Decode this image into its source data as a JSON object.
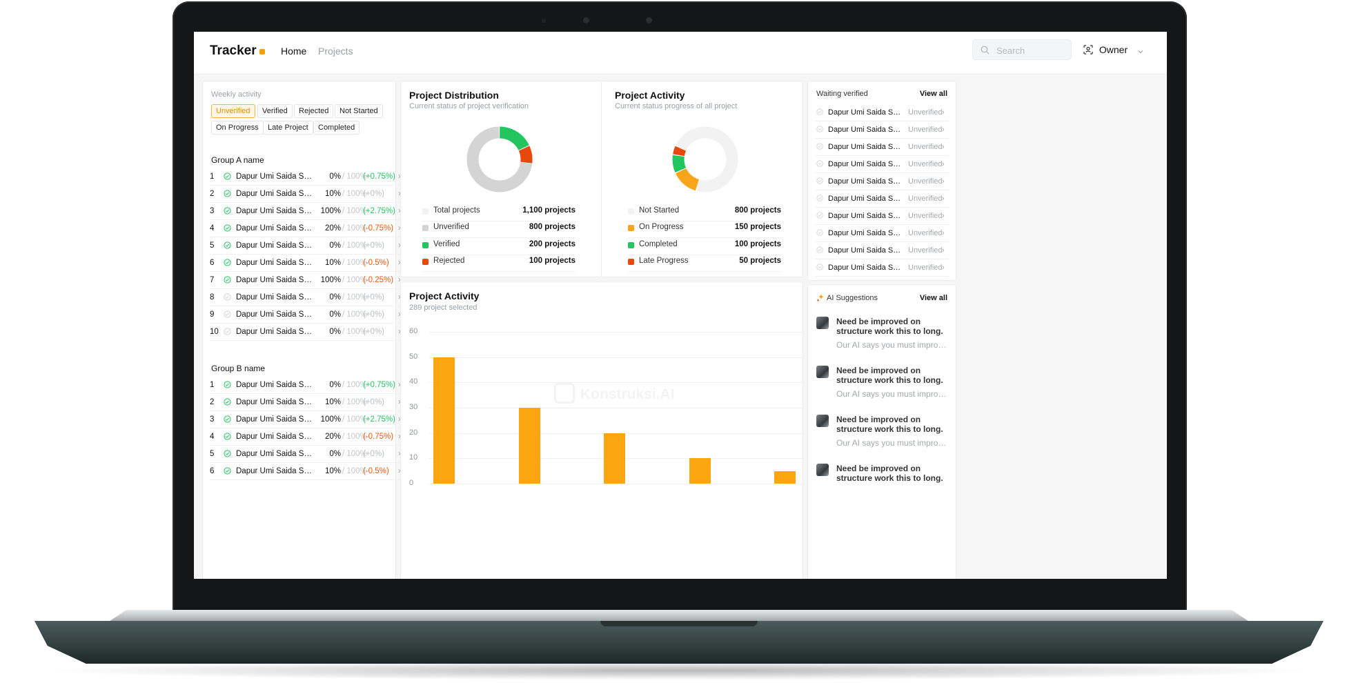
{
  "header": {
    "brand": "Tracker",
    "nav": {
      "home": "Home",
      "projects": "Projects"
    },
    "search_placeholder": "Search",
    "user": "Owner"
  },
  "weekly": {
    "label": "Weekly activity",
    "filters": [
      "Unverified",
      "Verified",
      "Rejected",
      "Not Started",
      "On Progress",
      "Late Project",
      "Completed"
    ],
    "active_filter": "Unverified",
    "groups": [
      {
        "name": "Group A name",
        "rows": [
          {
            "idx": "1",
            "name": "Dapur Umi Saida Sem...",
            "pct": "0%",
            "of": "/ 100%",
            "change": "(+0.75%)",
            "trend": "pos",
            "done": true
          },
          {
            "idx": "2",
            "name": "Dapur Umi Saida Sem...",
            "pct": "10%",
            "of": "/ 100%",
            "change": "(+0%)",
            "trend": "zero",
            "done": true
          },
          {
            "idx": "3",
            "name": "Dapur Umi Saida Sem...",
            "pct": "100%",
            "of": "/ 100%",
            "change": "(+2.75%)",
            "trend": "pos",
            "done": true
          },
          {
            "idx": "4",
            "name": "Dapur Umi Saida Sem...",
            "pct": "20%",
            "of": "/ 100%",
            "change": "(-0.75%)",
            "trend": "neg",
            "done": true
          },
          {
            "idx": "5",
            "name": "Dapur Umi Saida Sem...",
            "pct": "0%",
            "of": "/ 100%",
            "change": "(+0%)",
            "trend": "zero",
            "done": true
          },
          {
            "idx": "6",
            "name": "Dapur Umi Saida Sem...",
            "pct": "10%",
            "of": "/ 100%",
            "change": "(-0.5%)",
            "trend": "neg",
            "done": true
          },
          {
            "idx": "7",
            "name": "Dapur Umi Saida Sem...",
            "pct": "100%",
            "of": "/ 100%",
            "change": "(-0.25%)",
            "trend": "neg",
            "done": true
          },
          {
            "idx": "8",
            "name": "Dapur Umi Saida Sem...",
            "pct": "0%",
            "of": "/ 100%",
            "change": "(+0%)",
            "trend": "zero",
            "done": false
          },
          {
            "idx": "9",
            "name": "Dapur Umi Saida Sem...",
            "pct": "0%",
            "of": "/ 100%",
            "change": "(+0%)",
            "trend": "zero",
            "done": false
          },
          {
            "idx": "10",
            "name": "Dapur Umi Saida Sem...",
            "pct": "0%",
            "of": "/ 100%",
            "change": "(+0%)",
            "trend": "zero",
            "done": false
          }
        ]
      },
      {
        "name": "Group B name",
        "rows": [
          {
            "idx": "1",
            "name": "Dapur Umi Saida Sem...",
            "pct": "0%",
            "of": "/ 100%",
            "change": "(+0.75%)",
            "trend": "pos",
            "done": true
          },
          {
            "idx": "2",
            "name": "Dapur Umi Saida Sem...",
            "pct": "10%",
            "of": "/ 100%",
            "change": "(+0%)",
            "trend": "zero",
            "done": true
          },
          {
            "idx": "3",
            "name": "Dapur Umi Saida Sem...",
            "pct": "100%",
            "of": "/ 100%",
            "change": "(+2.75%)",
            "trend": "pos",
            "done": true
          },
          {
            "idx": "4",
            "name": "Dapur Umi Saida Sem...",
            "pct": "20%",
            "of": "/ 100%",
            "change": "(-0.75%)",
            "trend": "neg",
            "done": true
          },
          {
            "idx": "5",
            "name": "Dapur Umi Saida Sem...",
            "pct": "0%",
            "of": "/ 100%",
            "change": "(+0%)",
            "trend": "zero",
            "done": true
          },
          {
            "idx": "6",
            "name": "Dapur Umi Saida Sem...",
            "pct": "10%",
            "of": "/ 100%",
            "change": "(-0.5%)",
            "trend": "neg",
            "done": true
          }
        ]
      }
    ]
  },
  "distribution": {
    "title": "Project Distribution",
    "subtitle": "Current status of project verification",
    "legend": [
      {
        "label": "Total projects",
        "value": "1,100 projects",
        "color": "#f2f2f2"
      },
      {
        "label": "Unverified",
        "value": "800 projects",
        "color": "#d4d4d4"
      },
      {
        "label": "Verified",
        "value": "200 projects",
        "color": "#22c55e"
      },
      {
        "label": "Rejected",
        "value": "100 projects",
        "color": "#e8470e"
      }
    ]
  },
  "activity_summary": {
    "title": "Project Activity",
    "subtitle": "Current status progress of all project",
    "legend": [
      {
        "label": "Not Started",
        "value": "800 projects",
        "color": "#f2f2f2"
      },
      {
        "label": "On Progress",
        "value": "150 projects",
        "color": "#f9a51a"
      },
      {
        "label": "Completed",
        "value": "100 projects",
        "color": "#22c55e"
      },
      {
        "label": "Late Progress",
        "value": "50 projects",
        "color": "#e8470e"
      }
    ]
  },
  "activity_chart": {
    "title": "Project Activity",
    "subtitle": "289 project selected",
    "watermark": "Konstruksi.AI",
    "bar_color": "#fba610"
  },
  "chart_data": [
    {
      "type": "pie",
      "title": "Project Distribution",
      "labels": [
        "Unverified",
        "Verified",
        "Rejected"
      ],
      "values": [
        800,
        200,
        100
      ],
      "colors": [
        "#d4d4d4",
        "#22c55e",
        "#e8470e"
      ],
      "total": 1100
    },
    {
      "type": "pie",
      "title": "Project Activity",
      "labels": [
        "Not Started",
        "On Progress",
        "Completed",
        "Late Progress"
      ],
      "values": [
        800,
        150,
        100,
        50
      ],
      "colors": [
        "#f2f2f2",
        "#f9a51a",
        "#22c55e",
        "#e8470e"
      ]
    },
    {
      "type": "bar",
      "title": "Project Activity",
      "categories": [
        "",
        "",
        "",
        "",
        ""
      ],
      "values": [
        50,
        30,
        20,
        10,
        5
      ],
      "yticks": [
        "0",
        "10",
        "20",
        "30",
        "40",
        "50",
        "60"
      ],
      "ylim": [
        0,
        60
      ],
      "grid": true
    }
  ],
  "waiting": {
    "title": "Waiting verified",
    "view_all": "View all",
    "items": [
      {
        "name": "Dapur Umi Saida Sem...",
        "status": "Unverified"
      },
      {
        "name": "Dapur Umi Saida Sem...",
        "status": "Unverified"
      },
      {
        "name": "Dapur Umi Saida Sem...",
        "status": "Unverified"
      },
      {
        "name": "Dapur Umi Saida Sem...",
        "status": "Unverified"
      },
      {
        "name": "Dapur Umi Saida Sem...",
        "status": "Unverified"
      },
      {
        "name": "Dapur Umi Saida Sem...",
        "status": "Unverified"
      },
      {
        "name": "Dapur Umi Saida Sem...",
        "status": "Unverified"
      },
      {
        "name": "Dapur Umi Saida Sem...",
        "status": "Unverified"
      },
      {
        "name": "Dapur Umi Saida Sem...",
        "status": "Unverified"
      },
      {
        "name": "Dapur Umi Saida Sem...",
        "status": "Unverified"
      }
    ]
  },
  "ai": {
    "title": "AI Suggestions",
    "view_all": "View all",
    "items": [
      {
        "title": "Need be improved on structure work this to long.",
        "body": "Our AI says you must improve..."
      },
      {
        "title": "Need be improved on structure work this to long.",
        "body": "Our AI says you must improve..."
      },
      {
        "title": "Need be improved on structure work this to long.",
        "body": "Our AI says you must improve..."
      },
      {
        "title": "Need be improved on structure work this to long.",
        "body": ""
      }
    ]
  }
}
